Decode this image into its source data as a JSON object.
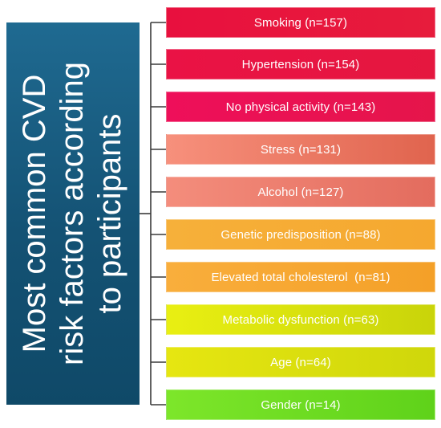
{
  "title": {
    "lines": [
      "Most common CVD",
      "risk factors according",
      "to participants"
    ]
  },
  "factors": [
    {
      "label": "Smoking (n=157)",
      "color_a": "#e8103e",
      "color_b": "#e71c3c"
    },
    {
      "label": "Hypertension (n=154)",
      "color_a": "#ea1245",
      "color_b": "#e5173f"
    },
    {
      "label": "No physical activity (n=143)",
      "color_a": "#ee0f5a",
      "color_b": "#e5154a"
    },
    {
      "label": "Stress (n=131)",
      "color_a": "#f7907c",
      "color_b": "#e0644e"
    },
    {
      "label": "Alcohol (n=127)",
      "color_a": "#f48d7c",
      "color_b": "#e36c5e"
    },
    {
      "label": "Genetic predisposition (n=88)",
      "color_a": "#f6b03a",
      "color_b": "#f5a82f"
    },
    {
      "label": "Elevated total cholesterol  (n=81)",
      "color_a": "#f9ae3c",
      "color_b": "#f4a028"
    },
    {
      "label": "Metabolic dysfunction (n=63)",
      "color_a": "#e9ef12",
      "color_b": "#c9d40a"
    },
    {
      "label": "Age (n=64)",
      "color_a": "#e6e611",
      "color_b": "#cfd70b"
    },
    {
      "label": "Gender (n=14)",
      "color_a": "#7de62a",
      "color_b": "#5fd21a"
    }
  ]
}
